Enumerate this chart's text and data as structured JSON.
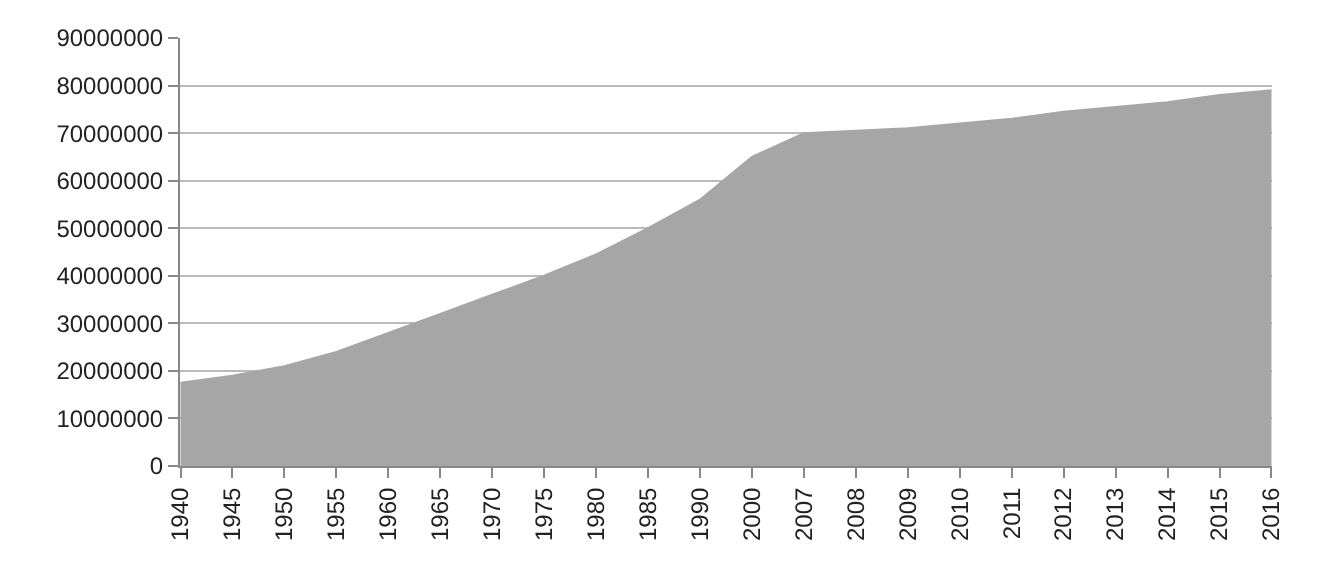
{
  "chart_data": {
    "type": "area",
    "categories": [
      "1940",
      "1945",
      "1950",
      "1955",
      "1960",
      "1965",
      "1970",
      "1975",
      "1980",
      "1985",
      "1990",
      "2000",
      "2007",
      "2008",
      "2009",
      "2010",
      "2011",
      "2012",
      "2013",
      "2014",
      "2015",
      "2016"
    ],
    "series": [
      {
        "color": "#a6a6a6",
        "values": [
          17500000,
          19000000,
          21000000,
          24000000,
          28000000,
          32000000,
          36000000,
          40000000,
          44500000,
          50000000,
          56000000,
          65000000,
          70000000,
          70500000,
          71000000,
          72000000,
          73000000,
          74500000,
          75500000,
          76500000,
          78000000,
          79000000
        ]
      }
    ],
    "ylim": [
      0,
      90000000
    ],
    "yticks": [
      0,
      10000000,
      20000000,
      30000000,
      40000000,
      50000000,
      60000000,
      70000000,
      80000000,
      90000000
    ],
    "grid": "y",
    "legend": false
  }
}
